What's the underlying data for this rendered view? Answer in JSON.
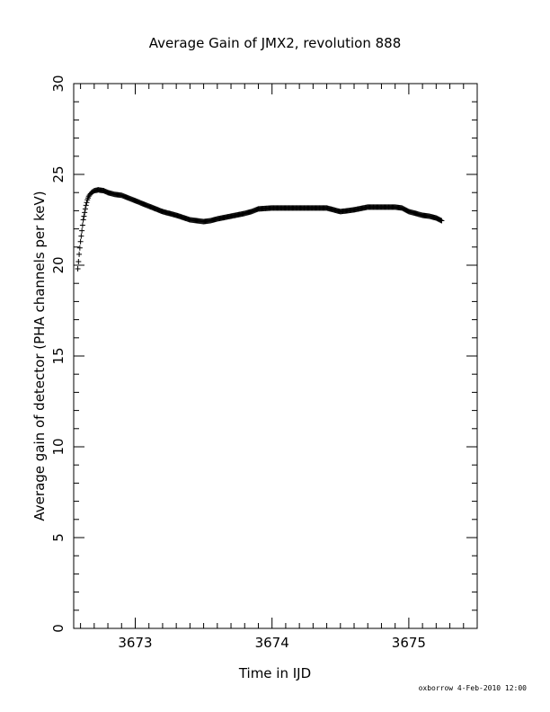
{
  "chart_data": {
    "type": "scatter",
    "title": "Average Gain of JMX2, revolution 888",
    "xlabel": "Time in IJD",
    "ylabel": "Average gain of detector (PHA channels per keV)",
    "xlim": [
      3672.55,
      3675.5
    ],
    "ylim": [
      0,
      30
    ],
    "x_ticks": [
      3673,
      3674,
      3675
    ],
    "x_tick_labels": [
      "3673",
      "3674",
      "3675"
    ],
    "y_ticks": [
      0,
      5,
      10,
      15,
      20,
      25,
      30
    ],
    "y_tick_labels": [
      "0",
      "5",
      "10",
      "15",
      "20",
      "25",
      "30"
    ],
    "marker": "+",
    "grid": false,
    "series": [
      {
        "x": [
          3672.58,
          3672.59,
          3672.6,
          3672.61,
          3672.62,
          3672.63,
          3672.64,
          3672.65,
          3672.66,
          3672.68,
          3672.7,
          3672.73,
          3672.77,
          3672.8,
          3672.85,
          3672.9,
          3672.95,
          3673.0,
          3673.05,
          3673.1,
          3673.2,
          3673.3,
          3673.4,
          3673.45,
          3673.5,
          3673.55,
          3673.6,
          3673.7,
          3673.8,
          3673.85,
          3673.9,
          3674.0,
          3674.1,
          3674.2,
          3674.3,
          3674.4,
          3674.5,
          3674.6,
          3674.7,
          3674.8,
          3674.9,
          3674.95,
          3675.0,
          3675.05,
          3675.1,
          3675.15,
          3675.2,
          3675.24
        ],
        "y": [
          19.8,
          20.6,
          21.3,
          21.9,
          22.5,
          22.9,
          23.3,
          23.6,
          23.8,
          24.0,
          24.1,
          24.15,
          24.1,
          24.0,
          23.9,
          23.85,
          23.7,
          23.55,
          23.4,
          23.25,
          22.95,
          22.75,
          22.5,
          22.45,
          22.4,
          22.45,
          22.55,
          22.7,
          22.85,
          22.95,
          23.1,
          23.15,
          23.15,
          23.15,
          23.15,
          23.15,
          22.95,
          23.05,
          23.2,
          23.2,
          23.2,
          23.15,
          22.95,
          22.85,
          22.75,
          22.7,
          22.6,
          22.45
        ]
      }
    ]
  },
  "footer": {
    "text": "oxborrow  4-Feb-2010 12:00"
  }
}
